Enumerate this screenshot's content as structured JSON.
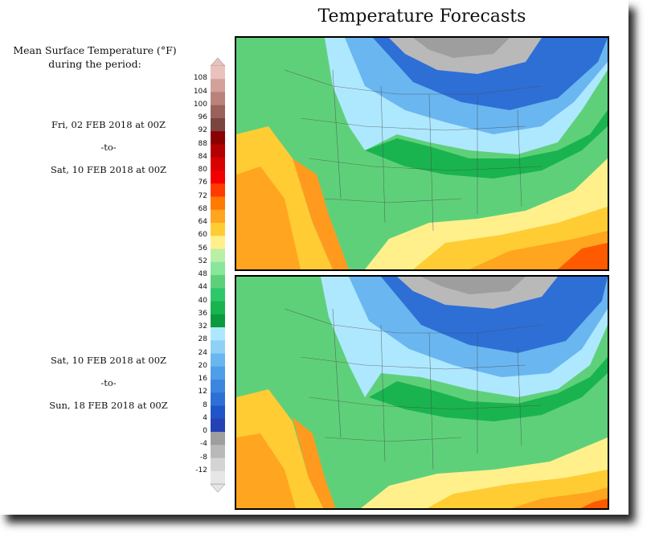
{
  "title": "Temperature Forecasts",
  "legend": {
    "title_line1": "Mean Surface Temperature (°F)",
    "title_line2": "during the period:",
    "ticks": [
      "108",
      "104",
      "100",
      "96",
      "92",
      "88",
      "84",
      "80",
      "76",
      "72",
      "68",
      "64",
      "60",
      "56",
      "52",
      "48",
      "44",
      "40",
      "36",
      "32",
      "28",
      "24",
      "20",
      "16",
      "12",
      "8",
      "4",
      "0",
      "-4",
      "-8",
      "-12"
    ],
    "colors": [
      "#e9c2bd",
      "#d3a199",
      "#b9827a",
      "#9a625a",
      "#7a443f",
      "#8b0000",
      "#b30000",
      "#d90000",
      "#f20000",
      "#ff3b00",
      "#ff7a00",
      "#ffa51f",
      "#ffcc33",
      "#fff08c",
      "#b9f0a5",
      "#89e69a",
      "#5fd07a",
      "#2ec86a",
      "#19b44f",
      "#0c9a3e",
      "#aee8ff",
      "#8fd1f5",
      "#6ab6f0",
      "#4f9ee8",
      "#3c86e0",
      "#2e6fd6",
      "#1f55c8",
      "#2442b5",
      "#9e9e9e",
      "#b9b9b9",
      "#d4d4d4",
      "#e6e6e6"
    ]
  },
  "periods": [
    {
      "start": "Fri, 02 FEB 2018 at 00Z",
      "sep": "-to-",
      "end": "Sat, 10 FEB 2018 at 00Z"
    },
    {
      "start": "Sat, 10 FEB 2018 at 00Z",
      "sep": "-to-",
      "end": "Sun, 18 FEB 2018 at 00Z"
    }
  ]
}
